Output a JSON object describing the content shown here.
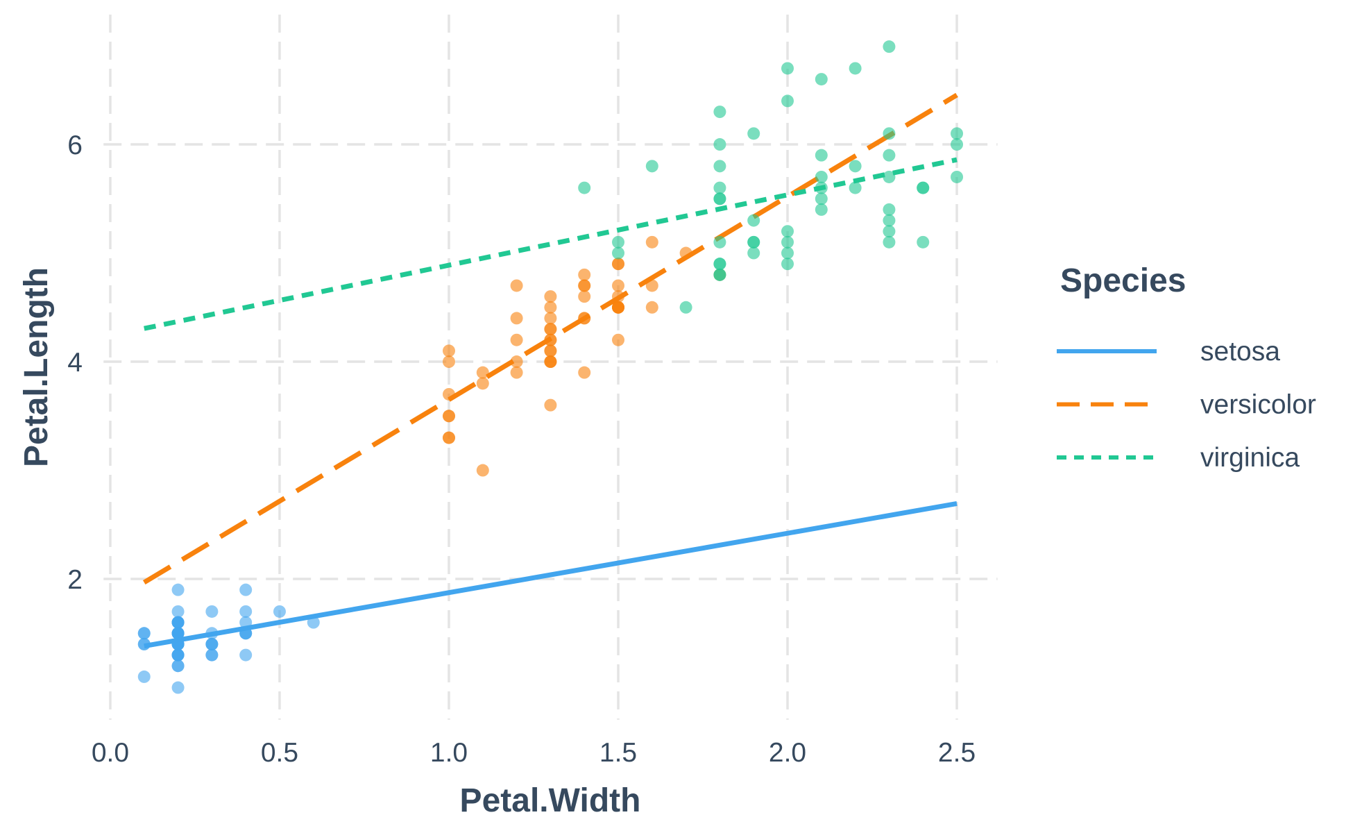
{
  "chart_data": {
    "type": "scatter",
    "xlabel": "Petal.Width",
    "ylabel": "Petal.Length",
    "legend_title": "Species",
    "legend_position": "right",
    "grid": "major-dashed",
    "xlim": [
      -0.02,
      2.62
    ],
    "ylim": [
      0.705,
      7.195
    ],
    "x_ticks": [
      0.0,
      0.5,
      1.0,
      1.5,
      2.0,
      2.5
    ],
    "x_tick_labels": [
      "0.0",
      "0.5",
      "1.0",
      "1.5",
      "2.0",
      "2.5"
    ],
    "y_ticks": [
      2,
      4,
      6
    ],
    "y_tick_labels": [
      "2",
      "4",
      "6"
    ],
    "style": {
      "background": "#FFFFFF",
      "text_color": "#36495E",
      "grid_color": "#E4E4E4",
      "point_radius": 9,
      "point_opacity": 0.6,
      "line_width": 7
    },
    "series": [
      {
        "name": "setosa",
        "color": "#42A5EE",
        "line_style": "solid",
        "regression": {
          "intercept": 1.3276,
          "slope": 0.5465,
          "x_range": [
            0.1,
            2.5
          ]
        },
        "points": [
          [
            0.2,
            1.4
          ],
          [
            0.2,
            1.4
          ],
          [
            0.2,
            1.3
          ],
          [
            0.2,
            1.5
          ],
          [
            0.2,
            1.4
          ],
          [
            0.4,
            1.7
          ],
          [
            0.3,
            1.4
          ],
          [
            0.2,
            1.5
          ],
          [
            0.2,
            1.4
          ],
          [
            0.1,
            1.5
          ],
          [
            0.2,
            1.5
          ],
          [
            0.2,
            1.6
          ],
          [
            0.1,
            1.4
          ],
          [
            0.1,
            1.1
          ],
          [
            0.2,
            1.2
          ],
          [
            0.4,
            1.5
          ],
          [
            0.4,
            1.3
          ],
          [
            0.3,
            1.4
          ],
          [
            0.3,
            1.7
          ],
          [
            0.3,
            1.5
          ],
          [
            0.2,
            1.7
          ],
          [
            0.4,
            1.5
          ],
          [
            0.2,
            1.0
          ],
          [
            0.5,
            1.7
          ],
          [
            0.2,
            1.9
          ],
          [
            0.2,
            1.6
          ],
          [
            0.4,
            1.6
          ],
          [
            0.2,
            1.5
          ],
          [
            0.2,
            1.4
          ],
          [
            0.2,
            1.6
          ],
          [
            0.2,
            1.6
          ],
          [
            0.4,
            1.5
          ],
          [
            0.1,
            1.5
          ],
          [
            0.2,
            1.4
          ],
          [
            0.2,
            1.5
          ],
          [
            0.2,
            1.2
          ],
          [
            0.2,
            1.3
          ],
          [
            0.1,
            1.4
          ],
          [
            0.2,
            1.3
          ],
          [
            0.2,
            1.5
          ],
          [
            0.3,
            1.3
          ],
          [
            0.3,
            1.3
          ],
          [
            0.2,
            1.3
          ],
          [
            0.6,
            1.6
          ],
          [
            0.4,
            1.9
          ],
          [
            0.3,
            1.4
          ],
          [
            0.2,
            1.6
          ],
          [
            0.2,
            1.4
          ],
          [
            0.2,
            1.5
          ],
          [
            0.2,
            1.4
          ]
        ]
      },
      {
        "name": "versicolor",
        "color": "#F8820D",
        "line_style": "dashed",
        "regression": {
          "intercept": 1.7813,
          "slope": 1.8693,
          "x_range": [
            0.1,
            2.5
          ]
        },
        "points": [
          [
            1.4,
            4.7
          ],
          [
            1.5,
            4.5
          ],
          [
            1.5,
            4.9
          ],
          [
            1.3,
            4.0
          ],
          [
            1.5,
            4.6
          ],
          [
            1.3,
            4.5
          ],
          [
            1.6,
            4.7
          ],
          [
            1.0,
            3.3
          ],
          [
            1.3,
            4.6
          ],
          [
            1.4,
            3.9
          ],
          [
            1.0,
            3.5
          ],
          [
            1.5,
            4.2
          ],
          [
            1.0,
            4.0
          ],
          [
            1.4,
            4.7
          ],
          [
            1.3,
            3.6
          ],
          [
            1.4,
            4.4
          ],
          [
            1.5,
            4.5
          ],
          [
            1.0,
            4.1
          ],
          [
            1.5,
            4.5
          ],
          [
            1.1,
            3.9
          ],
          [
            1.8,
            4.8
          ],
          [
            1.3,
            4.0
          ],
          [
            1.5,
            4.9
          ],
          [
            1.2,
            4.7
          ],
          [
            1.3,
            4.3
          ],
          [
            1.4,
            4.4
          ],
          [
            1.4,
            4.8
          ],
          [
            1.7,
            5.0
          ],
          [
            1.5,
            4.5
          ],
          [
            1.0,
            3.5
          ],
          [
            1.1,
            3.8
          ],
          [
            1.0,
            3.7
          ],
          [
            1.2,
            3.9
          ],
          [
            1.6,
            5.1
          ],
          [
            1.5,
            4.5
          ],
          [
            1.6,
            4.5
          ],
          [
            1.5,
            4.7
          ],
          [
            1.3,
            4.4
          ],
          [
            1.3,
            4.1
          ],
          [
            1.3,
            4.0
          ],
          [
            1.2,
            4.4
          ],
          [
            1.4,
            4.6
          ],
          [
            1.2,
            4.0
          ],
          [
            1.0,
            3.3
          ],
          [
            1.3,
            4.2
          ],
          [
            1.2,
            4.2
          ],
          [
            1.3,
            4.2
          ],
          [
            1.3,
            4.3
          ],
          [
            1.1,
            3.0
          ],
          [
            1.3,
            4.1
          ]
        ]
      },
      {
        "name": "virginica",
        "color": "#21C893",
        "line_style": "dotted",
        "regression": {
          "intercept": 4.2407,
          "slope": 0.6473,
          "x_range": [
            0.1,
            2.5
          ]
        },
        "points": [
          [
            2.5,
            6.0
          ],
          [
            1.9,
            5.1
          ],
          [
            2.1,
            5.9
          ],
          [
            1.8,
            5.6
          ],
          [
            2.2,
            5.8
          ],
          [
            2.1,
            6.6
          ],
          [
            1.7,
            4.5
          ],
          [
            1.8,
            6.3
          ],
          [
            1.8,
            5.8
          ],
          [
            2.5,
            6.1
          ],
          [
            2.0,
            5.1
          ],
          [
            1.9,
            5.3
          ],
          [
            2.1,
            5.5
          ],
          [
            2.0,
            5.0
          ],
          [
            2.4,
            5.1
          ],
          [
            2.3,
            5.3
          ],
          [
            1.8,
            5.5
          ],
          [
            2.2,
            6.7
          ],
          [
            2.3,
            6.9
          ],
          [
            1.5,
            5.0
          ],
          [
            2.3,
            5.7
          ],
          [
            2.0,
            4.9
          ],
          [
            2.0,
            6.7
          ],
          [
            1.8,
            4.9
          ],
          [
            2.1,
            5.7
          ],
          [
            1.8,
            6.0
          ],
          [
            1.8,
            4.8
          ],
          [
            1.8,
            4.9
          ],
          [
            2.1,
            5.6
          ],
          [
            1.6,
            5.8
          ],
          [
            1.9,
            6.1
          ],
          [
            2.0,
            6.4
          ],
          [
            2.2,
            5.6
          ],
          [
            1.5,
            5.1
          ],
          [
            1.4,
            5.6
          ],
          [
            2.3,
            6.1
          ],
          [
            2.4,
            5.6
          ],
          [
            1.8,
            5.5
          ],
          [
            1.8,
            4.8
          ],
          [
            2.1,
            5.4
          ],
          [
            2.4,
            5.6
          ],
          [
            2.3,
            5.1
          ],
          [
            1.9,
            5.1
          ],
          [
            2.3,
            5.9
          ],
          [
            2.5,
            5.7
          ],
          [
            2.3,
            5.2
          ],
          [
            1.9,
            5.0
          ],
          [
            2.0,
            5.2
          ],
          [
            2.3,
            5.4
          ],
          [
            1.8,
            5.1
          ]
        ]
      }
    ]
  }
}
